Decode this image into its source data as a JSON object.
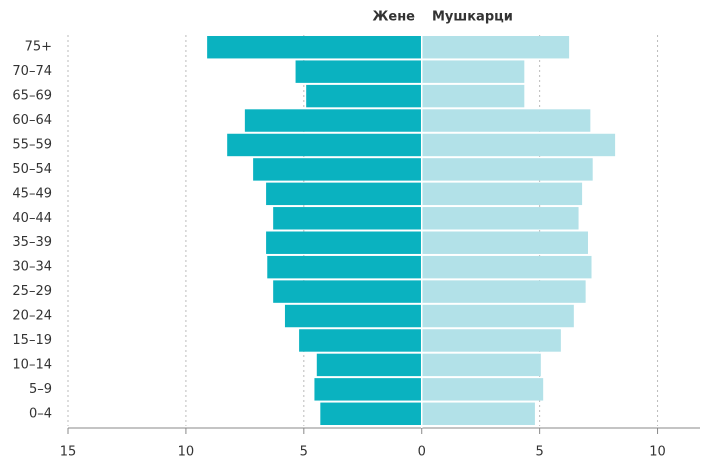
{
  "chart_data": {
    "type": "pyramid",
    "categories": [
      "75+",
      "70–74",
      "65–69",
      "60–64",
      "55–59",
      "50–54",
      "45–49",
      "40–44",
      "35–39",
      "30–34",
      "25–29",
      "20–24",
      "15–19",
      "10–14",
      "5–9",
      "0–4"
    ],
    "series": [
      {
        "name": "Жене",
        "color": "#0ab2c0",
        "values": [
          -9.1,
          -5.35,
          -4.9,
          -7.5,
          -8.25,
          -7.15,
          -6.6,
          -6.3,
          -6.6,
          -6.55,
          -6.3,
          -5.8,
          -5.2,
          -4.45,
          -4.55,
          -4.3
        ]
      },
      {
        "name": "Мушкарци",
        "color": "#b2e1e8",
        "values": [
          6.25,
          4.35,
          4.35,
          7.15,
          8.2,
          7.25,
          6.8,
          6.65,
          7.05,
          7.2,
          6.95,
          6.45,
          5.9,
          5.05,
          5.15,
          4.8
        ]
      }
    ],
    "xlim": [
      -15,
      11.8
    ],
    "xticks": [
      {
        "value": -15,
        "label": "15"
      },
      {
        "value": -10,
        "label": "10"
      },
      {
        "value": -5,
        "label": "5"
      },
      0,
      5,
      10
    ],
    "grid": true
  }
}
